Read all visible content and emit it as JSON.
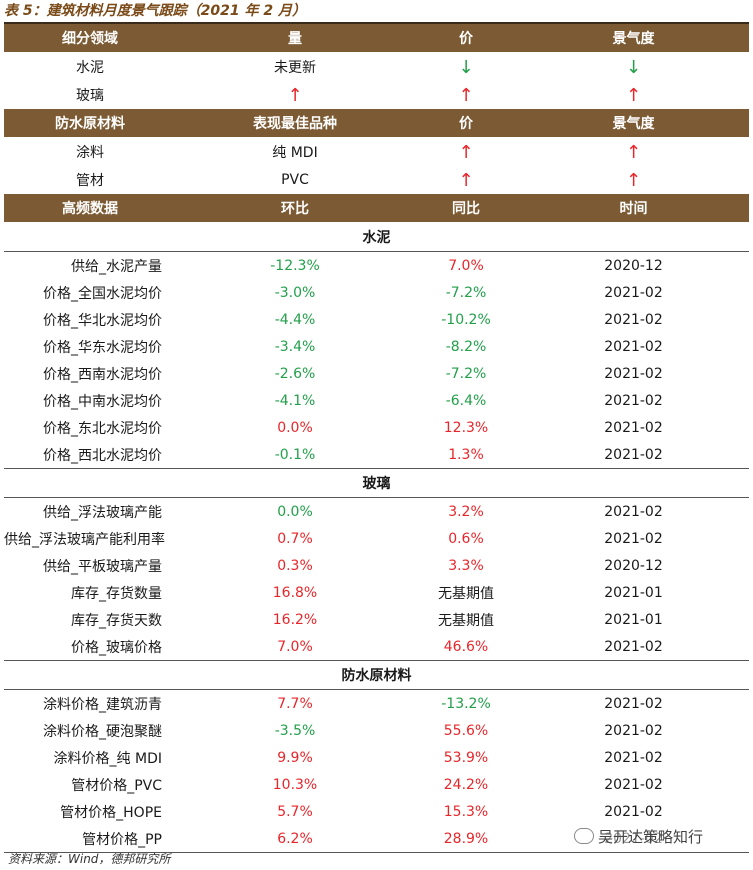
{
  "title": "表 5：建筑材料月度景气跟踪（2021 年 2 月）",
  "header1": [
    "细分领域",
    "量",
    "价",
    "景气度"
  ],
  "rows1": [
    {
      "name": "水泥",
      "qty": "未更新",
      "qty_color": "k",
      "price": "↓",
      "price_color": "g",
      "boom": "↓",
      "boom_color": "g"
    },
    {
      "name": "玻璃",
      "qty": "↑",
      "qty_color": "r",
      "price": "↑",
      "price_color": "r",
      "boom": "↑",
      "boom_color": "r"
    }
  ],
  "header2": [
    "防水原材料",
    "表现最佳品种",
    "价",
    "景气度"
  ],
  "rows2": [
    {
      "name": "涂料",
      "best": "纯 MDI",
      "price": "↑",
      "boom": "↑"
    },
    {
      "name": "管材",
      "best": "PVC",
      "price": "↑",
      "boom": "↑"
    }
  ],
  "header3": [
    "高频数据",
    "环比",
    "同比",
    "时间"
  ],
  "sections": [
    {
      "title": "水泥",
      "rows": [
        {
          "name": "供给_水泥产量",
          "mom": "-12.3%",
          "mom_color": "g",
          "yoy": "7.0%",
          "yoy_color": "r",
          "time": "2020-12"
        },
        {
          "name": "价格_全国水泥均价",
          "mom": "-3.0%",
          "mom_color": "g",
          "yoy": "-7.2%",
          "yoy_color": "g",
          "time": "2021-02"
        },
        {
          "name": "价格_华北水泥均价",
          "mom": "-4.4%",
          "mom_color": "g",
          "yoy": "-10.2%",
          "yoy_color": "g",
          "time": "2021-02"
        },
        {
          "name": "价格_华东水泥均价",
          "mom": "-3.4%",
          "mom_color": "g",
          "yoy": "-8.2%",
          "yoy_color": "g",
          "time": "2021-02"
        },
        {
          "name": "价格_西南水泥均价",
          "mom": "-2.6%",
          "mom_color": "g",
          "yoy": "-7.2%",
          "yoy_color": "g",
          "time": "2021-02"
        },
        {
          "name": "价格_中南水泥均价",
          "mom": "-4.1%",
          "mom_color": "g",
          "yoy": "-6.4%",
          "yoy_color": "g",
          "time": "2021-02"
        },
        {
          "name": "价格_东北水泥均价",
          "mom": "0.0%",
          "mom_color": "r",
          "yoy": "12.3%",
          "yoy_color": "r",
          "time": "2021-02"
        },
        {
          "name": "价格_西北水泥均价",
          "mom": "-0.1%",
          "mom_color": "g",
          "yoy": "1.3%",
          "yoy_color": "r",
          "time": "2021-02"
        }
      ]
    },
    {
      "title": "玻璃",
      "rows": [
        {
          "name": "供给_浮法玻璃产能",
          "mom": "0.0%",
          "mom_color": "g",
          "yoy": "3.2%",
          "yoy_color": "r",
          "time": "2021-02"
        },
        {
          "name": "供给_浮法玻璃产能利用率",
          "mom": "0.7%",
          "mom_color": "r",
          "yoy": "0.6%",
          "yoy_color": "r",
          "time": "2021-02"
        },
        {
          "name": "供给_平板玻璃产量",
          "mom": "0.3%",
          "mom_color": "r",
          "yoy": "3.3%",
          "yoy_color": "r",
          "time": "2020-12"
        },
        {
          "name": "库存_存货数量",
          "mom": "16.8%",
          "mom_color": "r",
          "yoy": "无基期值",
          "yoy_color": "k",
          "time": "2021-01"
        },
        {
          "name": "库存_存货天数",
          "mom": "16.2%",
          "mom_color": "r",
          "yoy": "无基期值",
          "yoy_color": "k",
          "time": "2021-01"
        },
        {
          "name": "价格_玻璃价格",
          "mom": "7.0%",
          "mom_color": "r",
          "yoy": "46.6%",
          "yoy_color": "r",
          "time": "2021-02"
        }
      ]
    },
    {
      "title": "防水原材料",
      "rows": [
        {
          "name": "涂料价格_建筑沥青",
          "mom": "7.7%",
          "mom_color": "r",
          "yoy": "-13.2%",
          "yoy_color": "g",
          "time": "2021-02"
        },
        {
          "name": "涂料价格_硬泡聚醚",
          "mom": "-3.5%",
          "mom_color": "g",
          "yoy": "55.6%",
          "yoy_color": "r",
          "time": "2021-02"
        },
        {
          "name": "涂料价格_纯 MDI",
          "mom": "9.9%",
          "mom_color": "r",
          "yoy": "53.9%",
          "yoy_color": "r",
          "time": "2021-02"
        },
        {
          "name": "管材价格_PVC",
          "mom": "10.3%",
          "mom_color": "r",
          "yoy": "24.2%",
          "yoy_color": "r",
          "time": "2021-02"
        },
        {
          "name": "管材价格_HOPE",
          "mom": "5.7%",
          "mom_color": "r",
          "yoy": "15.3%",
          "yoy_color": "r",
          "time": "2021-02"
        },
        {
          "name": "管材价格_PP",
          "mom": "6.2%",
          "mom_color": "r",
          "yoy": "28.9%",
          "yoy_color": "r",
          "time": "2021-02"
        }
      ]
    }
  ],
  "source": "资料来源：Wind，德邦研究所",
  "watermark": "吴开达策略知行",
  "colors": {
    "header_bg": "#7c5a33",
    "up_red": "#e8262a",
    "down_green": "#22a04a"
  }
}
